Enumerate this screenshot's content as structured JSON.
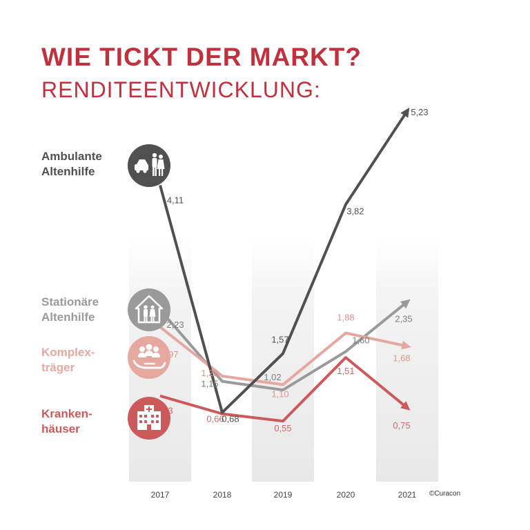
{
  "title": "WIE TICKT DER MARKT?",
  "subtitle": "RENDITEENTWICKLUNG:",
  "copyright": "©Curacon",
  "colors": {
    "title": "#c0313e",
    "ambulante": "#505050",
    "stationaere": "#9a9a9a",
    "komplex": "#e6a79f",
    "kranken": "#cc5a5a"
  },
  "chart_data": {
    "type": "line",
    "x": [
      "2017",
      "2018",
      "2019",
      "2020",
      "2021"
    ],
    "series": [
      {
        "key": "ambulante",
        "name_lines": [
          "Ambulante",
          "Altenhilfe"
        ],
        "icon": "car-and-elderly-couple-icon",
        "values": [
          4.11,
          0.68,
          1.57,
          3.82,
          5.23
        ],
        "labels": [
          "4,11",
          "0,68",
          "1,57",
          "3,82",
          "5,23"
        ]
      },
      {
        "key": "stationaere",
        "name_lines": [
          "Stationäre",
          "Altenhilfe"
        ],
        "icon": "house-with-elderly-couple-icon",
        "values": [
          2.23,
          1.15,
          1.02,
          1.6,
          2.35
        ],
        "labels": [
          "2,23",
          "1,15",
          "1,02",
          "1,60",
          "2,35"
        ]
      },
      {
        "key": "komplex",
        "name_lines": [
          "Komplex-",
          "träger"
        ],
        "icon": "people-in-hand-icon",
        "values": [
          1.97,
          1.23,
          1.1,
          1.88,
          1.68
        ],
        "labels": [
          "1,97",
          "1,23",
          "1,10",
          "1,88",
          "1,68"
        ]
      },
      {
        "key": "kranken",
        "name_lines": [
          "Kranken-",
          "häuser"
        ],
        "icon": "hospital-icon",
        "values": [
          0.93,
          0.66,
          0.55,
          1.51,
          0.75
        ],
        "labels": [
          "0,93",
          "0,66",
          "0,55",
          "1,51",
          "0,75"
        ]
      }
    ]
  }
}
